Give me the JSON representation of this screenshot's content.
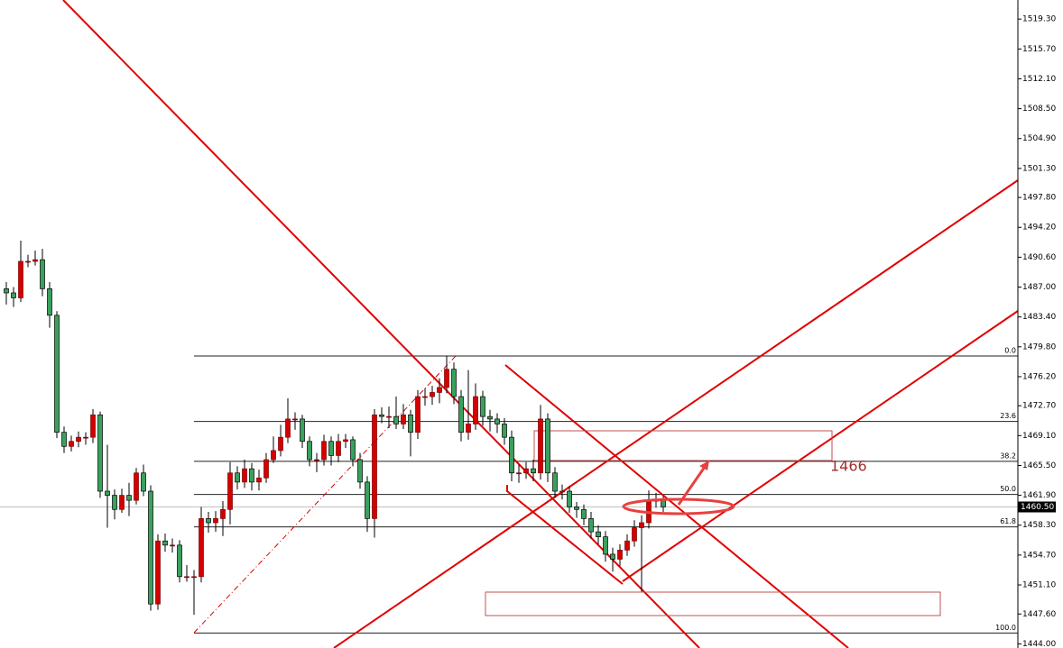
{
  "chart_data": {
    "type": "candlestick",
    "open": [
      1486.8,
      1486.3,
      1485.7,
      1490.1,
      1490.1,
      1490.3,
      1486.8,
      1483.6,
      1469.5,
      1467.8,
      1468.4,
      1468.9,
      1468.9,
      1471.6,
      1462.4,
      1461.9,
      1460.2,
      1461.9,
      1461.3,
      1464.6,
      1462.4,
      1448.8,
      1456.4,
      1455.9,
      1455.9,
      1452.1,
      1452.1,
      1452.1,
      1459.1,
      1458.6,
      1459.1,
      1460.2,
      1464.6,
      1463.5,
      1465.1,
      1463.5,
      1464.0,
      1466.2,
      1467.3,
      1468.9,
      1471.1,
      1471.1,
      1468.4,
      1466.2,
      1466.2,
      1468.4,
      1466.7,
      1468.4,
      1468.6,
      1466.2,
      1463.5,
      1459.1,
      1471.6,
      1471.4,
      1471.4,
      1470.5,
      1471.6,
      1469.5,
      1473.8,
      1473.8,
      1474.3,
      1474.9,
      1477.1,
      1473.8,
      1469.5,
      1470.5,
      1473.8,
      1471.4,
      1471.1,
      1470.5,
      1468.9,
      1464.6,
      1464.6,
      1465.1,
      1464.6,
      1471.1,
      1464.6,
      1462.4,
      1462.4,
      1460.5,
      1460.2,
      1459.1,
      1457.5,
      1456.9,
      1454.8,
      1454.2,
      1455.3,
      1456.4,
      1458.0,
      1458.6,
      1461.3,
      1461.3
    ],
    "high": [
      1487.6,
      1487.0,
      1492.6,
      1490.9,
      1491.4,
      1491.6,
      1487.6,
      1484.1,
      1470.2,
      1469.1,
      1469.6,
      1469.5,
      1472.3,
      1472.0,
      1468.0,
      1462.6,
      1462.7,
      1463.4,
      1465.2,
      1465.6,
      1463.1,
      1457.2,
      1457.3,
      1456.7,
      1456.5,
      1453.5,
      1452.9,
      1460.5,
      1459.9,
      1460.0,
      1461.2,
      1465.9,
      1465.4,
      1466.2,
      1465.8,
      1465.0,
      1467.0,
      1469.0,
      1470.4,
      1473.6,
      1471.9,
      1471.6,
      1469.0,
      1467.0,
      1469.2,
      1469.0,
      1469.3,
      1469.3,
      1469.0,
      1467.0,
      1464.2,
      1472.3,
      1472.5,
      1472.6,
      1473.8,
      1472.9,
      1472.2,
      1474.6,
      1474.8,
      1475.1,
      1476.0,
      1478.7,
      1477.9,
      1474.6,
      1477.0,
      1475.4,
      1474.5,
      1472.2,
      1471.8,
      1471.2,
      1469.7,
      1465.6,
      1465.9,
      1466.2,
      1472.8,
      1471.8,
      1465.3,
      1463.2,
      1463.0,
      1461.1,
      1460.8,
      1459.9,
      1458.3,
      1457.6,
      1455.6,
      1456.0,
      1457.2,
      1458.9,
      1459.5,
      1462.5,
      1462.2,
      1461.8
    ],
    "low": [
      1484.9,
      1484.6,
      1485.2,
      1489.4,
      1489.6,
      1485.9,
      1482.1,
      1468.8,
      1467.0,
      1467.2,
      1467.7,
      1468.0,
      1468.2,
      1461.6,
      1458.0,
      1459.0,
      1459.8,
      1459.4,
      1460.8,
      1461.8,
      1448.0,
      1448.1,
      1455.1,
      1455.0,
      1451.4,
      1451.5,
      1447.5,
      1451.4,
      1457.4,
      1457.5,
      1457.0,
      1458.4,
      1462.6,
      1462.8,
      1462.5,
      1462.5,
      1463.4,
      1465.8,
      1466.6,
      1468.2,
      1469.8,
      1467.6,
      1465.4,
      1464.7,
      1465.5,
      1465.5,
      1465.9,
      1467.6,
      1465.4,
      1462.7,
      1457.5,
      1456.8,
      1470.6,
      1470.0,
      1469.9,
      1469.9,
      1466.6,
      1468.7,
      1472.7,
      1472.8,
      1473.0,
      1474.2,
      1472.9,
      1468.4,
      1468.6,
      1469.8,
      1470.3,
      1469.6,
      1469.4,
      1468.0,
      1463.6,
      1463.4,
      1463.9,
      1463.6,
      1463.8,
      1463.5,
      1461.6,
      1461.4,
      1459.8,
      1459.2,
      1458.3,
      1456.7,
      1456.0,
      1453.9,
      1452.7,
      1453.4,
      1454.6,
      1455.7,
      1450.3,
      1457.9,
      1460.4,
      1459.9
    ],
    "close": [
      1486.3,
      1485.7,
      1490.1,
      1490.1,
      1490.3,
      1486.8,
      1483.6,
      1469.5,
      1467.8,
      1468.4,
      1468.9,
      1468.9,
      1471.6,
      1462.4,
      1461.9,
      1460.2,
      1461.9,
      1461.3,
      1464.6,
      1462.4,
      1448.8,
      1456.4,
      1455.9,
      1455.9,
      1452.1,
      1452.1,
      1452.1,
      1459.1,
      1458.6,
      1459.1,
      1460.2,
      1464.6,
      1463.5,
      1465.1,
      1463.5,
      1464.0,
      1466.2,
      1467.3,
      1468.9,
      1471.1,
      1471.1,
      1468.4,
      1466.2,
      1466.2,
      1468.4,
      1466.7,
      1468.4,
      1468.6,
      1466.2,
      1463.5,
      1459.1,
      1471.6,
      1471.4,
      1471.4,
      1470.5,
      1471.6,
      1469.5,
      1473.8,
      1473.8,
      1474.3,
      1474.9,
      1477.1,
      1473.8,
      1469.5,
      1470.5,
      1473.8,
      1471.4,
      1471.1,
      1470.5,
      1468.9,
      1464.6,
      1464.6,
      1465.1,
      1464.6,
      1471.1,
      1464.6,
      1462.4,
      1462.4,
      1460.5,
      1460.2,
      1459.1,
      1457.5,
      1456.9,
      1454.8,
      1454.2,
      1455.3,
      1456.4,
      1458.0,
      1458.6,
      1461.3,
      1461.3,
      1460.5
    ],
    "bull_color": "#d40000",
    "bear_color": "#3aa05e",
    "ylim": [
      1443.5,
      1521.6
    ],
    "yticks": [
      {
        "value": 1519.3,
        "label": "1519.30"
      },
      {
        "value": 1515.7,
        "label": "1515.70"
      },
      {
        "value": 1512.1,
        "label": "1512.10"
      },
      {
        "value": 1508.5,
        "label": "1508.50"
      },
      {
        "value": 1504.9,
        "label": "1504.90"
      },
      {
        "value": 1501.3,
        "label": "1501.30"
      },
      {
        "value": 1497.8,
        "label": "1497.80"
      },
      {
        "value": 1494.2,
        "label": "1494.20"
      },
      {
        "value": 1490.6,
        "label": "1490.60"
      },
      {
        "value": 1487,
        "label": "1487.00"
      },
      {
        "value": 1483.4,
        "label": "1483.40"
      },
      {
        "value": 1479.8,
        "label": "1479.80"
      },
      {
        "value": 1476.2,
        "label": "1476.20"
      },
      {
        "value": 1472.7,
        "label": "1472.70"
      },
      {
        "value": 1469.1,
        "label": "1469.10"
      },
      {
        "value": 1465.5,
        "label": "1465.50"
      },
      {
        "value": 1461.9,
        "label": "1461.90"
      },
      {
        "value": 1458.3,
        "label": "1458.30"
      },
      {
        "value": 1454.7,
        "label": "1454.70"
      },
      {
        "value": 1451.1,
        "label": "1451.10"
      },
      {
        "value": 1447.6,
        "label": "1447.60"
      },
      {
        "value": 1444,
        "label": "1444.00"
      }
    ],
    "fib_levels": [
      {
        "label": "0.0",
        "price": 1478.7
      },
      {
        "label": "23.6",
        "price": 1470.8
      },
      {
        "label": "38.2",
        "price": 1466.0
      },
      {
        "label": "50.0",
        "price": 1462.0
      },
      {
        "label": "61.8",
        "price": 1458.1
      },
      {
        "label": "100.0",
        "price": 1445.3
      }
    ],
    "last_price": {
      "value": 1460.5,
      "label": "1460.50"
    },
    "annotation": 1466
  }
}
